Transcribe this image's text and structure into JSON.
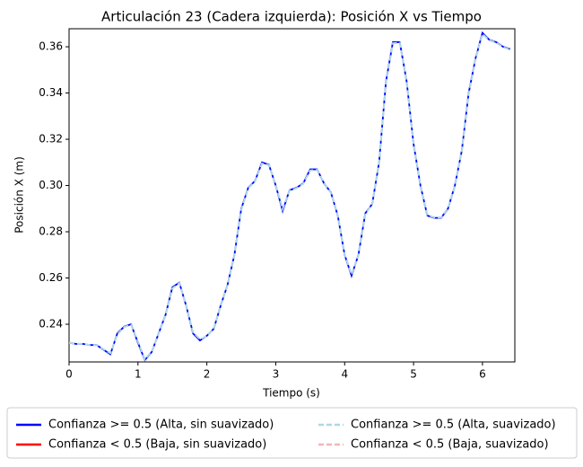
{
  "chart_data": {
    "type": "line",
    "title": "Articulación 23 (Cadera izquierda): Posición X vs Tiempo",
    "x_label": "Tiempo (s)",
    "y_label": "Posición X (m)",
    "x": [
      0,
      0.1,
      0.2,
      0.3,
      0.4,
      0.5,
      0.6,
      0.7,
      0.8,
      0.9,
      1.0,
      1.1,
      1.2,
      1.3,
      1.4,
      1.5,
      1.6,
      1.7,
      1.8,
      1.9,
      2.0,
      2.1,
      2.2,
      2.3,
      2.4,
      2.5,
      2.6,
      2.7,
      2.8,
      2.9,
      3.0,
      3.1,
      3.2,
      3.3,
      3.4,
      3.5,
      3.6,
      3.7,
      3.8,
      3.9,
      4.0,
      4.1,
      4.2,
      4.3,
      4.4,
      4.5,
      4.6,
      4.7,
      4.8,
      4.9,
      5.0,
      5.1,
      5.2,
      5.3,
      5.4,
      5.5,
      5.6,
      5.7,
      5.8,
      5.9,
      6.0,
      6.1,
      6.2,
      6.3,
      6.4
    ],
    "series": [
      {
        "name": "Confianza >= 0.5 (Alta, sin suavizado)",
        "color": "#0000ff",
        "dashed": false,
        "values": [
          0.232,
          0.2315,
          0.2315,
          0.231,
          0.231,
          0.229,
          0.227,
          0.236,
          0.239,
          0.24,
          0.232,
          0.2245,
          0.228,
          0.236,
          0.244,
          0.256,
          0.258,
          0.248,
          0.236,
          0.233,
          0.235,
          0.238,
          0.248,
          0.257,
          0.27,
          0.29,
          0.299,
          0.302,
          0.31,
          0.309,
          0.3,
          0.289,
          0.298,
          0.299,
          0.301,
          0.307,
          0.307,
          0.301,
          0.297,
          0.287,
          0.27,
          0.261,
          0.27,
          0.288,
          0.292,
          0.31,
          0.345,
          0.362,
          0.362,
          0.345,
          0.318,
          0.3,
          0.287,
          0.286,
          0.286,
          0.29,
          0.3,
          0.315,
          0.34,
          0.355,
          0.366,
          0.363,
          0.362,
          0.36,
          0.359
        ]
      },
      {
        "name": "Confianza < 0.5 (Baja, sin suavizado)",
        "color": "#ff0000",
        "dashed": false,
        "values": [
          null,
          null,
          null,
          null,
          null,
          null,
          null,
          null,
          null,
          null,
          null,
          null,
          null,
          null,
          null,
          null,
          null,
          null,
          null,
          null,
          null,
          null,
          null,
          null,
          null,
          null,
          null,
          null,
          null,
          null,
          null,
          null,
          null,
          null,
          null,
          null,
          null,
          null,
          null,
          null,
          null,
          null,
          null,
          null,
          null,
          null,
          null,
          null,
          null,
          null,
          null,
          null,
          null,
          null,
          null,
          null,
          null,
          null,
          null,
          null,
          null,
          null,
          null,
          null,
          null
        ]
      },
      {
        "name": "Confianza >= 0.5 (Alta, suavizado)",
        "color": "#add8e6",
        "dashed": true,
        "values": [
          0.232,
          0.2315,
          0.2315,
          0.231,
          0.231,
          0.2292,
          0.2275,
          0.2355,
          0.2388,
          0.2398,
          0.2325,
          0.2248,
          0.2282,
          0.2358,
          0.2438,
          0.2555,
          0.2578,
          0.2482,
          0.2365,
          0.2335,
          0.2348,
          0.2382,
          0.2478,
          0.2568,
          0.2698,
          0.2895,
          0.2988,
          0.3018,
          0.3095,
          0.3088,
          0.3002,
          0.2898,
          0.2978,
          0.2988,
          0.3008,
          0.3065,
          0.3068,
          0.3012,
          0.2968,
          0.2872,
          0.2702,
          0.2615,
          0.2698,
          0.2875,
          0.2922,
          0.3102,
          0.3445,
          0.3615,
          0.3618,
          0.3452,
          0.3182,
          0.3002,
          0.2872,
          0.2862,
          0.2862,
          0.2902,
          0.3002,
          0.3148,
          0.3395,
          0.3548,
          0.3655,
          0.3628,
          0.3618,
          0.3598,
          0.3588
        ]
      },
      {
        "name": "Confianza < 0.5 (Baja, suavizado)",
        "color": "#f4b6b6",
        "dashed": true,
        "values": [
          null,
          null,
          null,
          null,
          null,
          null,
          null,
          null,
          null,
          null,
          null,
          null,
          null,
          null,
          null,
          null,
          null,
          null,
          null,
          null,
          null,
          null,
          null,
          null,
          null,
          null,
          null,
          null,
          null,
          null,
          null,
          null,
          null,
          null,
          null,
          null,
          null,
          null,
          null,
          null,
          null,
          null,
          null,
          null,
          null,
          null,
          null,
          null,
          null,
          null,
          null,
          null,
          null,
          null,
          null,
          null,
          null,
          null,
          null,
          null,
          null,
          null,
          null,
          null,
          null
        ]
      }
    ],
    "xlim": [
      0,
      6.47
    ],
    "ylim": [
      0.2237,
      0.3678
    ],
    "xticks": [
      0,
      1,
      2,
      3,
      4,
      5,
      6
    ],
    "yticks": [
      0.24,
      0.26,
      0.28,
      {
        "value": 0.3,
        "label": "0.30"
      },
      0.32,
      0.34,
      0.36
    ],
    "legend": "lower center"
  }
}
